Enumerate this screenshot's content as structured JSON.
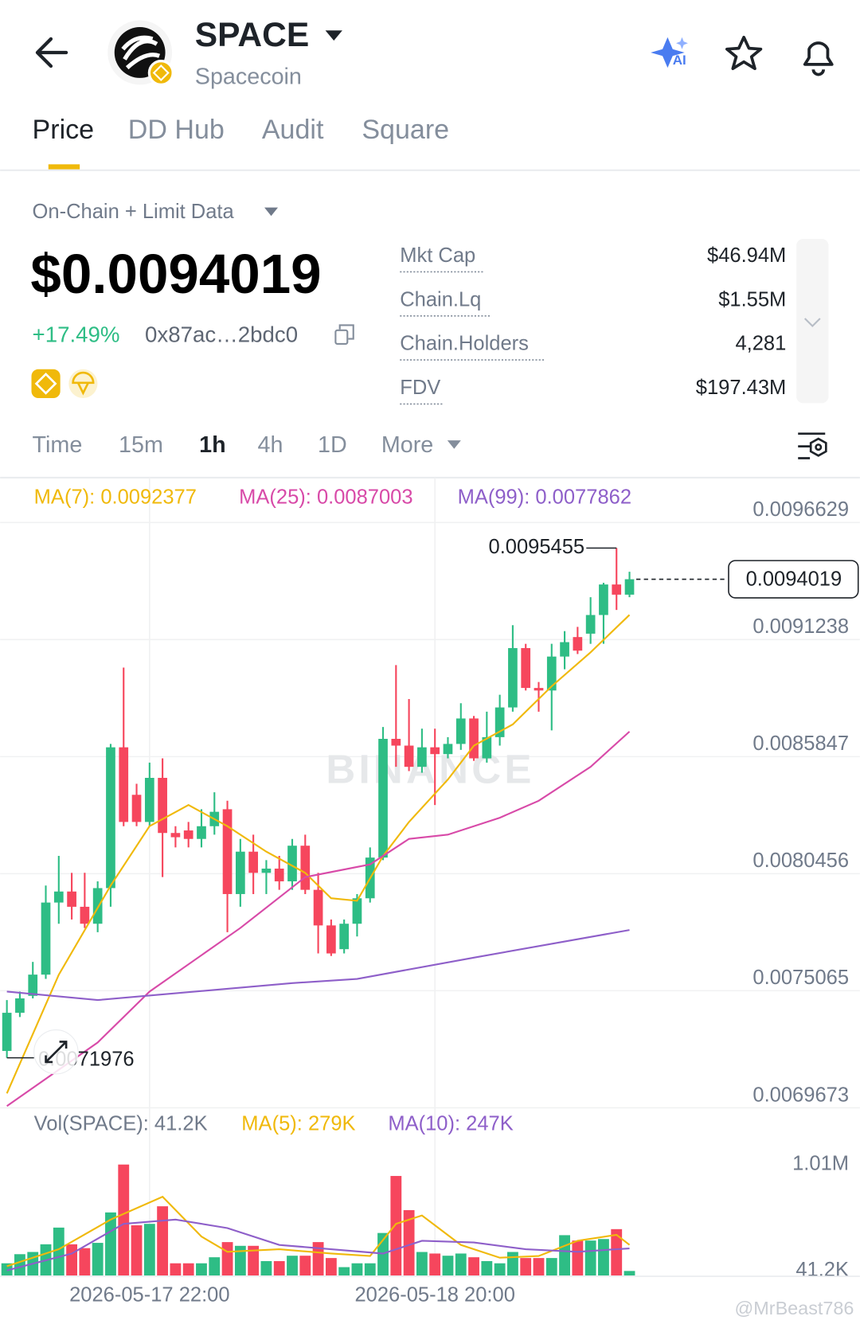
{
  "header": {
    "symbol": "SPACE",
    "name": "Spacecoin"
  },
  "tabs": [
    "Price",
    "DD Hub",
    "Audit",
    "Square"
  ],
  "data_source": "On-Chain + Limit Data",
  "price": "$0.0094019",
  "change": "+17.49%",
  "address": "0x87ac…2bdc0",
  "stats": [
    {
      "label": "Mkt Cap",
      "value": "$46.94M"
    },
    {
      "label": "Chain.Lq",
      "value": "$1.55M"
    },
    {
      "label": "Chain.Holders",
      "value": "4,281"
    },
    {
      "label": "FDV",
      "value": "$197.43M"
    }
  ],
  "intervals": [
    "Time",
    "15m",
    "1h",
    "4h",
    "1D",
    "More"
  ],
  "watermark": "@MrBeast786",
  "chart": {
    "type": "candlestick",
    "watermark": "BINANCE",
    "up_color": "#2ebd85",
    "down_color": "#f6465d",
    "ylim": [
      0.0069673,
      0.0096629
    ],
    "yticks": [
      0.0096629,
      0.0091238,
      0.0085847,
      0.0080456,
      0.0075065,
      0.0069673
    ],
    "xlim": [
      0,
      48
    ],
    "xticks": [
      {
        "value": 11,
        "label": "2026-05-17 22:00"
      },
      {
        "value": 33,
        "label": "2026-05-18 20:00"
      }
    ],
    "grid": true,
    "high": 0.0095455,
    "low": 0.0071976,
    "last": 0.0094019,
    "candles": [
      [
        0.0072291,
        0.0074635,
        0.0071976,
        0.0074049
      ],
      [
        0.0074049,
        0.0075026,
        0.0073854,
        0.0074713
      ],
      [
        0.007483,
        0.0076393,
        0.0074713,
        0.0075807
      ],
      [
        0.0075807,
        0.0079909,
        0.0075611,
        0.0079127
      ],
      [
        0.0079127,
        0.0081276,
        0.0078151,
        0.0079635
      ],
      [
        0.0079635,
        0.0080495,
        0.0078346,
        0.0078932
      ],
      [
        0.0078932,
        0.0080495,
        0.0077955,
        0.0078151
      ],
      [
        0.0078151,
        0.0080104,
        0.007776,
        0.0079792
      ],
      [
        0.0079792,
        0.0086433,
        0.0078932,
        0.0086277
      ],
      [
        0.0086277,
        0.0089949,
        0.0082643,
        0.0082839
      ],
      [
        0.0084089,
        0.0084597,
        0.0082643,
        0.0082839
      ],
      [
        0.0082839,
        0.0085573,
        0.0082643,
        0.008487
      ],
      [
        0.008487,
        0.0085769,
        0.0080299,
        0.0082331
      ],
      [
        0.0082331,
        0.0082643,
        0.0081667,
        0.0082136
      ],
      [
        0.0082448,
        0.0082839,
        0.0081667,
        0.0082057
      ],
      [
        0.0082057,
        0.0083425,
        0.0081667,
        0.0082643
      ],
      [
        0.0082643,
        0.0084206,
        0.0082253,
        0.0083307
      ],
      [
        0.0083425,
        0.0083815,
        0.007776,
        0.0079518
      ],
      [
        0.0079518,
        0.0082057,
        0.0078932,
        0.0081471
      ],
      [
        0.0081471,
        0.0082253,
        0.0079518,
        0.0080495
      ],
      [
        0.0080495,
        0.0081081,
        0.0079518,
        0.008069
      ],
      [
        0.008069,
        0.0081276,
        0.0079713,
        0.0080104
      ],
      [
        0.0080104,
        0.0082057,
        0.0079713,
        0.0081745
      ],
      [
        0.0081745,
        0.0082253,
        0.0079518,
        0.0079713
      ],
      [
        0.0079713,
        0.0080495,
        0.0076783,
        0.0078073
      ],
      [
        0.0078073,
        0.0078346,
        0.0076666,
        0.0076783
      ],
      [
        0.0076979,
        0.0078346,
        0.0076783,
        0.0078151
      ],
      [
        0.0078151,
        0.0079518,
        0.0077565,
        0.0079323
      ],
      [
        0.0079323,
        0.0081667,
        0.0079127,
        0.0081198
      ],
      [
        0.0081198,
        0.0087214,
        0.0081081,
        0.0086667
      ],
      [
        0.0086667,
        0.0090066,
        0.0085378,
        0.0086355
      ],
      [
        0.0086355,
        0.0088503,
        0.0085183,
        0.0085378
      ],
      [
        0.0085378,
        0.0087136,
        0.0085105,
        0.0086277
      ],
      [
        0.0086277,
        0.0087136,
        0.008362,
        0.0085964
      ],
      [
        0.0085964,
        0.0086745,
        0.0085769,
        0.0086433
      ],
      [
        0.0086433,
        0.0088308,
        0.0086159,
        0.0087605
      ],
      [
        0.0087605,
        0.0087722,
        0.0085651,
        0.0085769
      ],
      [
        0.0085769,
        0.0087917,
        0.0085573,
        0.0086745
      ],
      [
        0.0086745,
        0.0088699,
        0.0086355,
        0.0088113
      ],
      [
        0.0088113,
        0.0091902,
        0.0087917,
        0.0090847
      ],
      [
        0.0090847,
        0.0091043,
        0.0088894,
        0.0089011
      ],
      [
        0.0089011,
        0.0089285,
        0.0087917,
        0.0088894
      ],
      [
        0.0088894,
        0.0091043,
        0.0087058,
        0.0090457
      ],
      [
        0.0090457,
        0.0091629,
        0.0089871,
        0.0091121
      ],
      [
        0.0091355,
        0.0091824,
        0.0090574,
        0.009073
      ],
      [
        0.0091511,
        0.0093191,
        0.0091043,
        0.0092371
      ],
      [
        0.0092371,
        0.0093855,
        0.0091043,
        0.0093777
      ],
      [
        0.0093777,
        0.0095455,
        0.0092605,
        0.0093308
      ],
      [
        0.0093308,
        0.0094363,
        0.0093191,
        0.0094019
      ]
    ],
    "ma_lines": [
      {
        "name": "MA(7): 0.0092377",
        "color": "#f0b90b",
        "x": [
          0,
          4,
          8,
          11,
          14,
          17,
          20,
          23,
          25,
          27,
          29,
          31,
          34,
          36,
          39,
          42,
          45,
          48
        ],
        "values": [
          0.0070338,
          0.0075807,
          0.0079909,
          0.0082643,
          0.008362,
          0.0082643,
          0.0081471,
          0.0080495,
          0.0079323,
          0.0079206,
          0.0081276,
          0.0082839,
          0.0084792,
          0.0086355,
          0.0087331,
          0.0089089,
          0.0090652,
          0.0092377
        ]
      },
      {
        "name": "MA(25): 0.0087003",
        "color": "#d84aa8",
        "x": [
          0,
          7,
          11,
          18,
          23,
          28,
          31,
          34,
          38,
          41,
          45,
          48
        ],
        "values": [
          0.0069752,
          0.0072682,
          0.0075026,
          0.0077955,
          0.0080299,
          0.0080885,
          0.0082057,
          0.0082253,
          0.0083034,
          0.0083815,
          0.0085378,
          0.0087003
        ]
      },
      {
        "name": "MA(99): 0.0077862",
        "color": "#8e5fc9",
        "x": [
          0,
          7,
          22,
          27,
          36,
          48
        ],
        "values": [
          0.0075026,
          0.0074635,
          0.0075416,
          0.0075611,
          0.0076588,
          0.0077862
        ]
      }
    ],
    "volume": {
      "title": "Vol(SPACE): 41.2K",
      "ylim": [
        0,
        1010000
      ],
      "yticks": [
        {
          "value": 1010000,
          "label": "1.01M"
        },
        {
          "value": 41200,
          "label": "41.2K"
        }
      ],
      "values": [
        111000,
        194000,
        214000,
        284000,
        436000,
        284000,
        249000,
        297000,
        574000,
        1010000,
        457000,
        470000,
        630000,
        111000,
        111000,
        111000,
        166000,
        304000,
        270000,
        270000,
        131000,
        131000,
        180000,
        180000,
        304000,
        159000,
        76000,
        111000,
        111000,
        387000,
        906000,
        595000,
        214000,
        200000,
        180000,
        200000,
        166000,
        131000,
        111000,
        214000,
        159000,
        159000,
        159000,
        367000,
        318000,
        318000,
        332000,
        422000,
        41200
      ],
      "ma_lines": [
        {
          "name": "MA(5): 279K",
          "color": "#f0b90b",
          "x": [
            0,
            4,
            8,
            12,
            15,
            17,
            21,
            25,
            28,
            30,
            32,
            35,
            38,
            41,
            44,
            47,
            48
          ],
          "values": [
            85000,
            239000,
            509000,
            717000,
            355000,
            216000,
            239000,
            200000,
            177000,
            470000,
            547000,
            278000,
            162000,
            177000,
            316000,
            370000,
            279000
          ]
        },
        {
          "name": "MA(10): 247K",
          "color": "#8e5fc9",
          "x": [
            0,
            5,
            9,
            13,
            17,
            21,
            25,
            29,
            32,
            36,
            40,
            44,
            48
          ],
          "values": [
            46000,
            200000,
            470000,
            509000,
            432000,
            278000,
            239000,
            200000,
            316000,
            301000,
            239000,
            216000,
            247000
          ]
        }
      ]
    }
  }
}
